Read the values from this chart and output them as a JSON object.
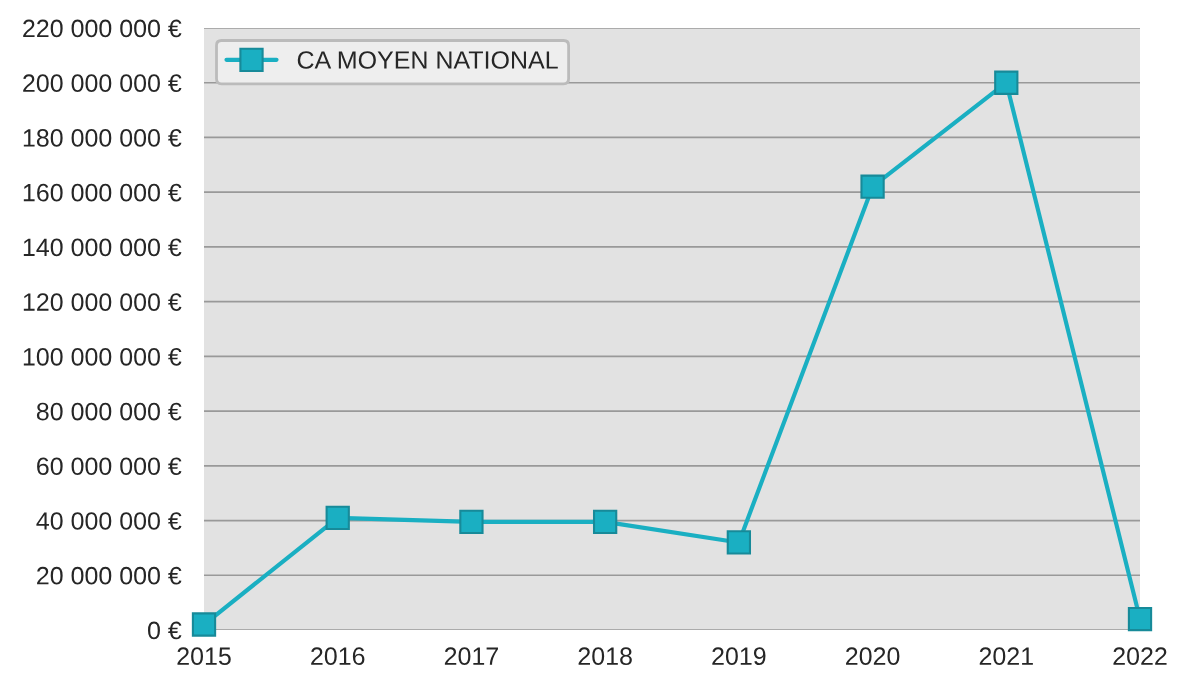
{
  "chart_data": {
    "type": "line",
    "x": [
      2015,
      2016,
      2017,
      2018,
      2019,
      2020,
      2021,
      2022
    ],
    "series": [
      {
        "name": "CA MOYEN NATIONAL",
        "color": "#1aafc2",
        "values": [
          2000000,
          41000000,
          39500000,
          39500000,
          32000000,
          162000000,
          200000000,
          4000000
        ]
      }
    ],
    "xlim": [
      2015,
      2022
    ],
    "xticks": [
      2015,
      2016,
      2017,
      2018,
      2019,
      2020,
      2021,
      2022
    ],
    "ylim": [
      0,
      220000000
    ],
    "yticks": [
      {
        "value": 0,
        "label": "0 €"
      },
      {
        "value": 20000000,
        "label": "20 000 000 €"
      },
      {
        "value": 40000000,
        "label": "40 000 000 €"
      },
      {
        "value": 60000000,
        "label": "60 000 000 €"
      },
      {
        "value": 80000000,
        "label": "80 000 000 €"
      },
      {
        "value": 100000000,
        "label": "100 000 000 €"
      },
      {
        "value": 120000000,
        "label": "120 000 000 €"
      },
      {
        "value": 140000000,
        "label": "140 000 000 €"
      },
      {
        "value": 160000000,
        "label": "160 000 000 €"
      },
      {
        "value": 180000000,
        "label": "180 000 000 €"
      },
      {
        "value": 200000000,
        "label": "200 000 000 €"
      },
      {
        "value": 220000000,
        "label": "220 000 000 €"
      }
    ],
    "grid": "y",
    "legend": "top left",
    "marker": "square",
    "line_style": "solid"
  }
}
